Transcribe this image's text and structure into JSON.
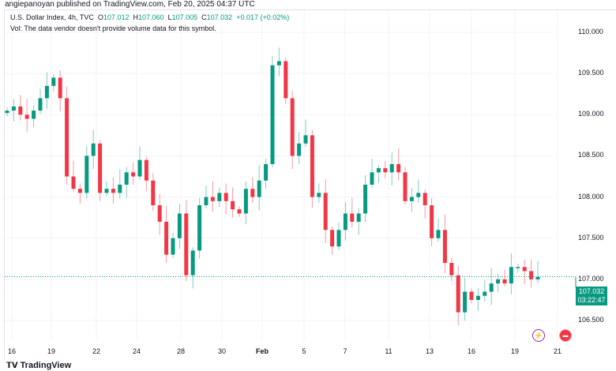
{
  "published": "angiepanoyan published on TradingView.com, Feb 20, 2025 04:37 UTC",
  "legend": {
    "symbol": "U.S. Dollar Index, 4h, TVC",
    "o_label": "O",
    "o": "107.012",
    "h_label": "H",
    "h": "107.060",
    "l_label": "L",
    "l": "107.005",
    "c_label": "C",
    "c": "107.032",
    "change": "+0.017 (+0.02%)",
    "vol": "Vol: The data vendor doesn't provide volume data for this symbol."
  },
  "price_axis": [
    "110.000",
    "109.500",
    "109.000",
    "108.500",
    "108.000",
    "107.500",
    "107.000",
    "106.500"
  ],
  "current_price": {
    "value": "107.032",
    "countdown": "03:22:47"
  },
  "date_axis": [
    "16",
    "19",
    "22",
    "24",
    "28",
    "30",
    "Feb",
    "5",
    "7",
    "11",
    "13",
    "16",
    "19",
    "21"
  ],
  "footer": {
    "logo": "TradingView"
  },
  "icons": [
    "lightning-icon",
    "us-flag-icon"
  ],
  "colors": {
    "up": "#089981",
    "down": "#f23645",
    "accent": "#089981"
  },
  "chart_data": {
    "type": "candlestick",
    "title": "U.S. Dollar Index, 4h, TVC",
    "ylim": [
      106.3,
      110.2
    ],
    "closes": [
      109.05,
      109.1,
      109.0,
      108.95,
      109.05,
      109.2,
      109.35,
      109.45,
      109.2,
      108.25,
      108.1,
      108.05,
      108.5,
      108.65,
      108.05,
      108.1,
      108.05,
      108.15,
      108.3,
      108.25,
      108.45,
      108.2,
      107.9,
      107.7,
      107.3,
      107.5,
      107.8,
      107.05,
      107.35,
      107.9,
      108.0,
      107.95,
      108.05,
      107.95,
      107.85,
      107.8,
      108.1,
      108.0,
      108.2,
      108.4,
      109.6,
      109.65,
      109.2,
      108.5,
      108.65,
      108.75,
      108.0,
      108.05,
      107.6,
      107.4,
      107.6,
      107.8,
      107.7,
      107.8,
      108.15,
      108.3,
      108.35,
      108.3,
      108.4,
      108.3,
      107.95,
      108.0,
      108.05,
      107.9,
      107.5,
      107.6,
      107.2,
      107.05,
      106.6,
      106.85,
      106.75,
      106.8,
      106.85,
      106.95,
      107.0,
      106.95,
      107.15,
      107.15,
      107.1,
      107.0,
      107.03
    ]
  }
}
